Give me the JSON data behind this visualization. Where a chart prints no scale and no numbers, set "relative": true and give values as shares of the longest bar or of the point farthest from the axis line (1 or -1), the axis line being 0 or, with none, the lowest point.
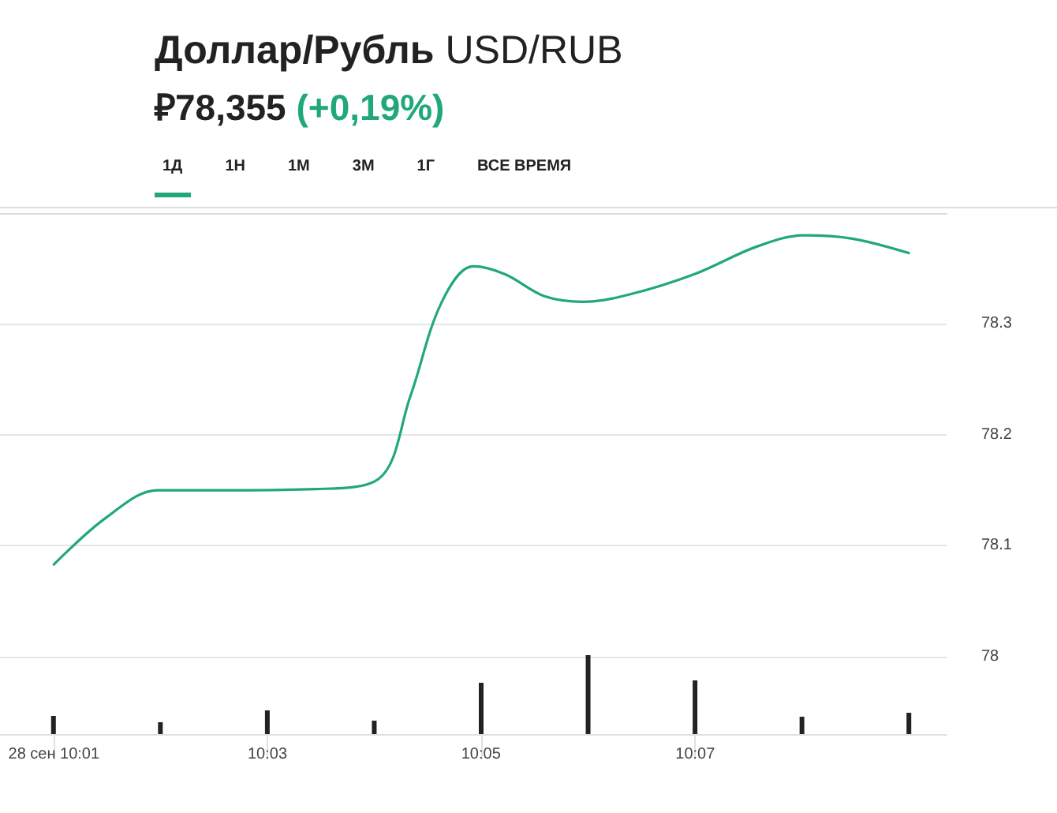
{
  "chart_data": [
    {
      "type": "line",
      "title": "Доллар/Рубль",
      "subtitle": "USD/RUB",
      "annotations": [
        "₽78,355 (+0,19%)",
        "1Д",
        "1Н",
        "1М",
        "3М",
        "1Г",
        "ВСЕ ВРЕМЯ"
      ],
      "x": [
        10.0167,
        10.0248,
        10.0329,
        10.0452,
        10.0575,
        10.0673,
        10.0723,
        10.0772,
        10.0821,
        10.087,
        10.0932,
        10.0993,
        10.1067,
        10.1166,
        10.1264,
        10.1338,
        10.1412,
        10.15
      ],
      "series": [
        {
          "color": "#21a87a",
          "values": [
            78.083,
            78.125,
            78.15,
            78.15,
            78.151,
            78.16,
            78.235,
            78.32,
            78.352,
            78.345,
            78.325,
            78.32,
            78.327,
            78.345,
            78.37,
            78.38,
            78.377,
            78.364
          ]
        }
      ],
      "xlim": [
        10.0083,
        10.1559
      ],
      "xticks": [
        {
          "value": 10.0167,
          "label": "28 сен 10:01"
        },
        {
          "value": 10.05,
          "label": "10:03"
        },
        {
          "value": 10.0833,
          "label": "10:05"
        },
        {
          "value": 10.1167,
          "label": "10:07"
        }
      ],
      "ylim": [
        77.93,
        78.4
      ],
      "yticks": [
        78,
        78.1,
        78.2,
        78.3
      ],
      "grid": "y",
      "marker": "none",
      "line_style": "solid"
    },
    {
      "type": "bar",
      "relative": true,
      "tick_labels": false,
      "categories": [
        null,
        null,
        null,
        null,
        null,
        null,
        null,
        null,
        null
      ],
      "series": [
        {
          "color": "#222222",
          "values": [
            0.23,
            0.15,
            0.3,
            0.17,
            0.65,
            1,
            0.68,
            0.22,
            0.27
          ]
        }
      ]
    }
  ]
}
